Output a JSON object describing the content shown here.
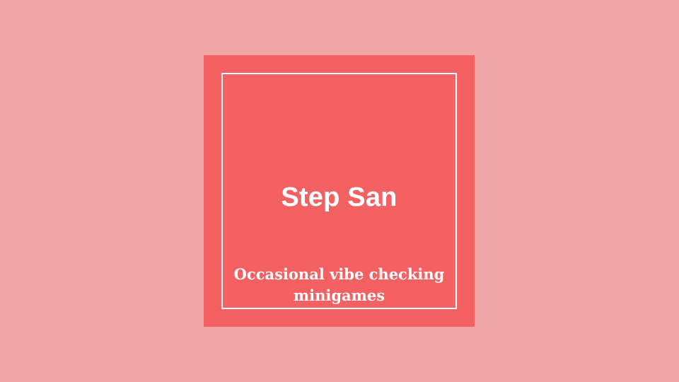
{
  "colors": {
    "background": "#eea7a6",
    "card": "#f46163",
    "frame": "#ffffff",
    "text": "#ffffff"
  },
  "card": {
    "title": "Step San",
    "subtitle_line1": "Occasional vibe checking",
    "subtitle_line2": "minigames"
  }
}
